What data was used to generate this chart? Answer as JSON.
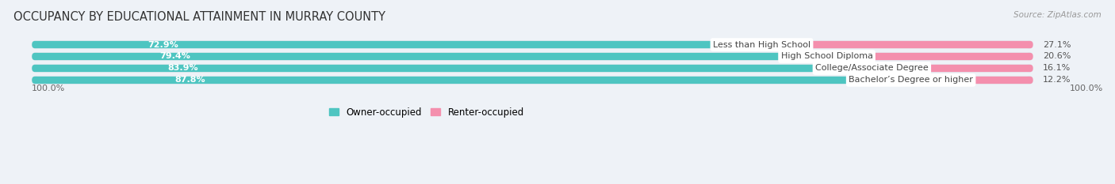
{
  "title": "OCCUPANCY BY EDUCATIONAL ATTAINMENT IN MURRAY COUNTY",
  "source": "Source: ZipAtlas.com",
  "categories": [
    "Less than High School",
    "High School Diploma",
    "College/Associate Degree",
    "Bachelor’s Degree or higher"
  ],
  "owner_values": [
    72.9,
    79.4,
    83.9,
    87.8
  ],
  "renter_values": [
    27.1,
    20.6,
    16.1,
    12.2
  ],
  "owner_color": "#4ec5c1",
  "renter_color": "#f48fad",
  "background_color": "#eef2f7",
  "bar_background": "#e0e5ec",
  "bar_background_inner": "#ffffff",
  "title_fontsize": 10.5,
  "label_fontsize": 8.0,
  "value_fontsize": 8.0,
  "tick_fontsize": 8,
  "source_fontsize": 7.5,
  "legend_fontsize": 8.5,
  "bar_height": 0.62,
  "axis_label_left": "100.0%",
  "axis_label_right": "100.0%"
}
